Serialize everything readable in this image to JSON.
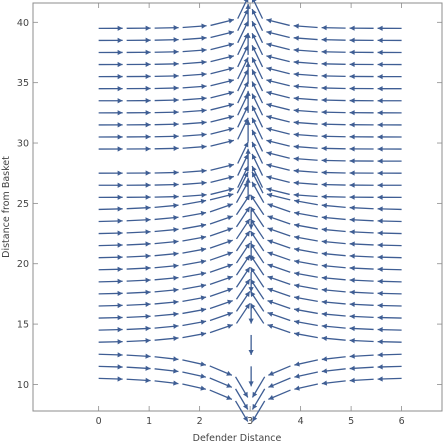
{
  "chart_data": {
    "type": "stream_plot",
    "title": "",
    "xlabel": "Defender Distance",
    "ylabel": "Distance from Basket",
    "xlim": [
      -1.3,
      6.8
    ],
    "ylim": [
      7.8,
      41.6
    ],
    "xticks": [
      0,
      1,
      2,
      3,
      4,
      5,
      6
    ],
    "yticks": [
      10,
      15,
      20,
      25,
      30,
      35,
      40
    ],
    "color": "#3f5e94",
    "grid": false,
    "stream_field": "horizontal streams converging toward x = 3; above y = 25 they flow into a vertical separatrix at x = 3 rising to y = 40; below y = 25 the streams curve upward toward x = 3, and near x = 3 they turn down to y = 10",
    "converging_x": 3,
    "separatrix_y": 25,
    "rows": [
      [
        0,
        39.5
      ],
      [
        0,
        38.5
      ],
      [
        0,
        37.5
      ],
      [
        0,
        36.5
      ],
      [
        0,
        35.5
      ],
      [
        0,
        34.5
      ],
      [
        0,
        33.5
      ],
      [
        0,
        32.5
      ],
      [
        0,
        31.5
      ],
      [
        0,
        30.5
      ],
      [
        0,
        29.5
      ],
      [
        0,
        27.5
      ],
      [
        0,
        26.5
      ],
      [
        0,
        25.5
      ],
      [
        0,
        24.5
      ],
      [
        0,
        23.5
      ],
      [
        0,
        22.5
      ],
      [
        0,
        21.5
      ],
      [
        0,
        20.5
      ],
      [
        0,
        19.5
      ],
      [
        0,
        18.5
      ],
      [
        0,
        17.5
      ],
      [
        0,
        16.5
      ],
      [
        0,
        15.5
      ],
      [
        0,
        14.5
      ],
      [
        0,
        13.5
      ],
      [
        0,
        12.5
      ],
      [
        0,
        11.5
      ],
      [
        0,
        10.5
      ],
      [
        6,
        39.5
      ],
      [
        6,
        38.5
      ],
      [
        6,
        37.5
      ],
      [
        6,
        36.5
      ],
      [
        6,
        35.5
      ],
      [
        6,
        34.5
      ],
      [
        6,
        33.5
      ],
      [
        6,
        32.5
      ],
      [
        6,
        31.5
      ],
      [
        6,
        30.5
      ],
      [
        6,
        29.5
      ],
      [
        6,
        28.5
      ],
      [
        6,
        27.5
      ],
      [
        6,
        26.5
      ],
      [
        6,
        25.5
      ],
      [
        6,
        24.5
      ],
      [
        6,
        23.5
      ],
      [
        6,
        22.5
      ],
      [
        6,
        21.5
      ],
      [
        6,
        20.5
      ],
      [
        6,
        19.5
      ],
      [
        6,
        18.5
      ],
      [
        6,
        17.5
      ],
      [
        6,
        16.5
      ],
      [
        6,
        15.5
      ],
      [
        6,
        14.5
      ],
      [
        6,
        13.5
      ],
      [
        6,
        12.5
      ],
      [
        6,
        11.5
      ],
      [
        6,
        10.5
      ]
    ]
  }
}
